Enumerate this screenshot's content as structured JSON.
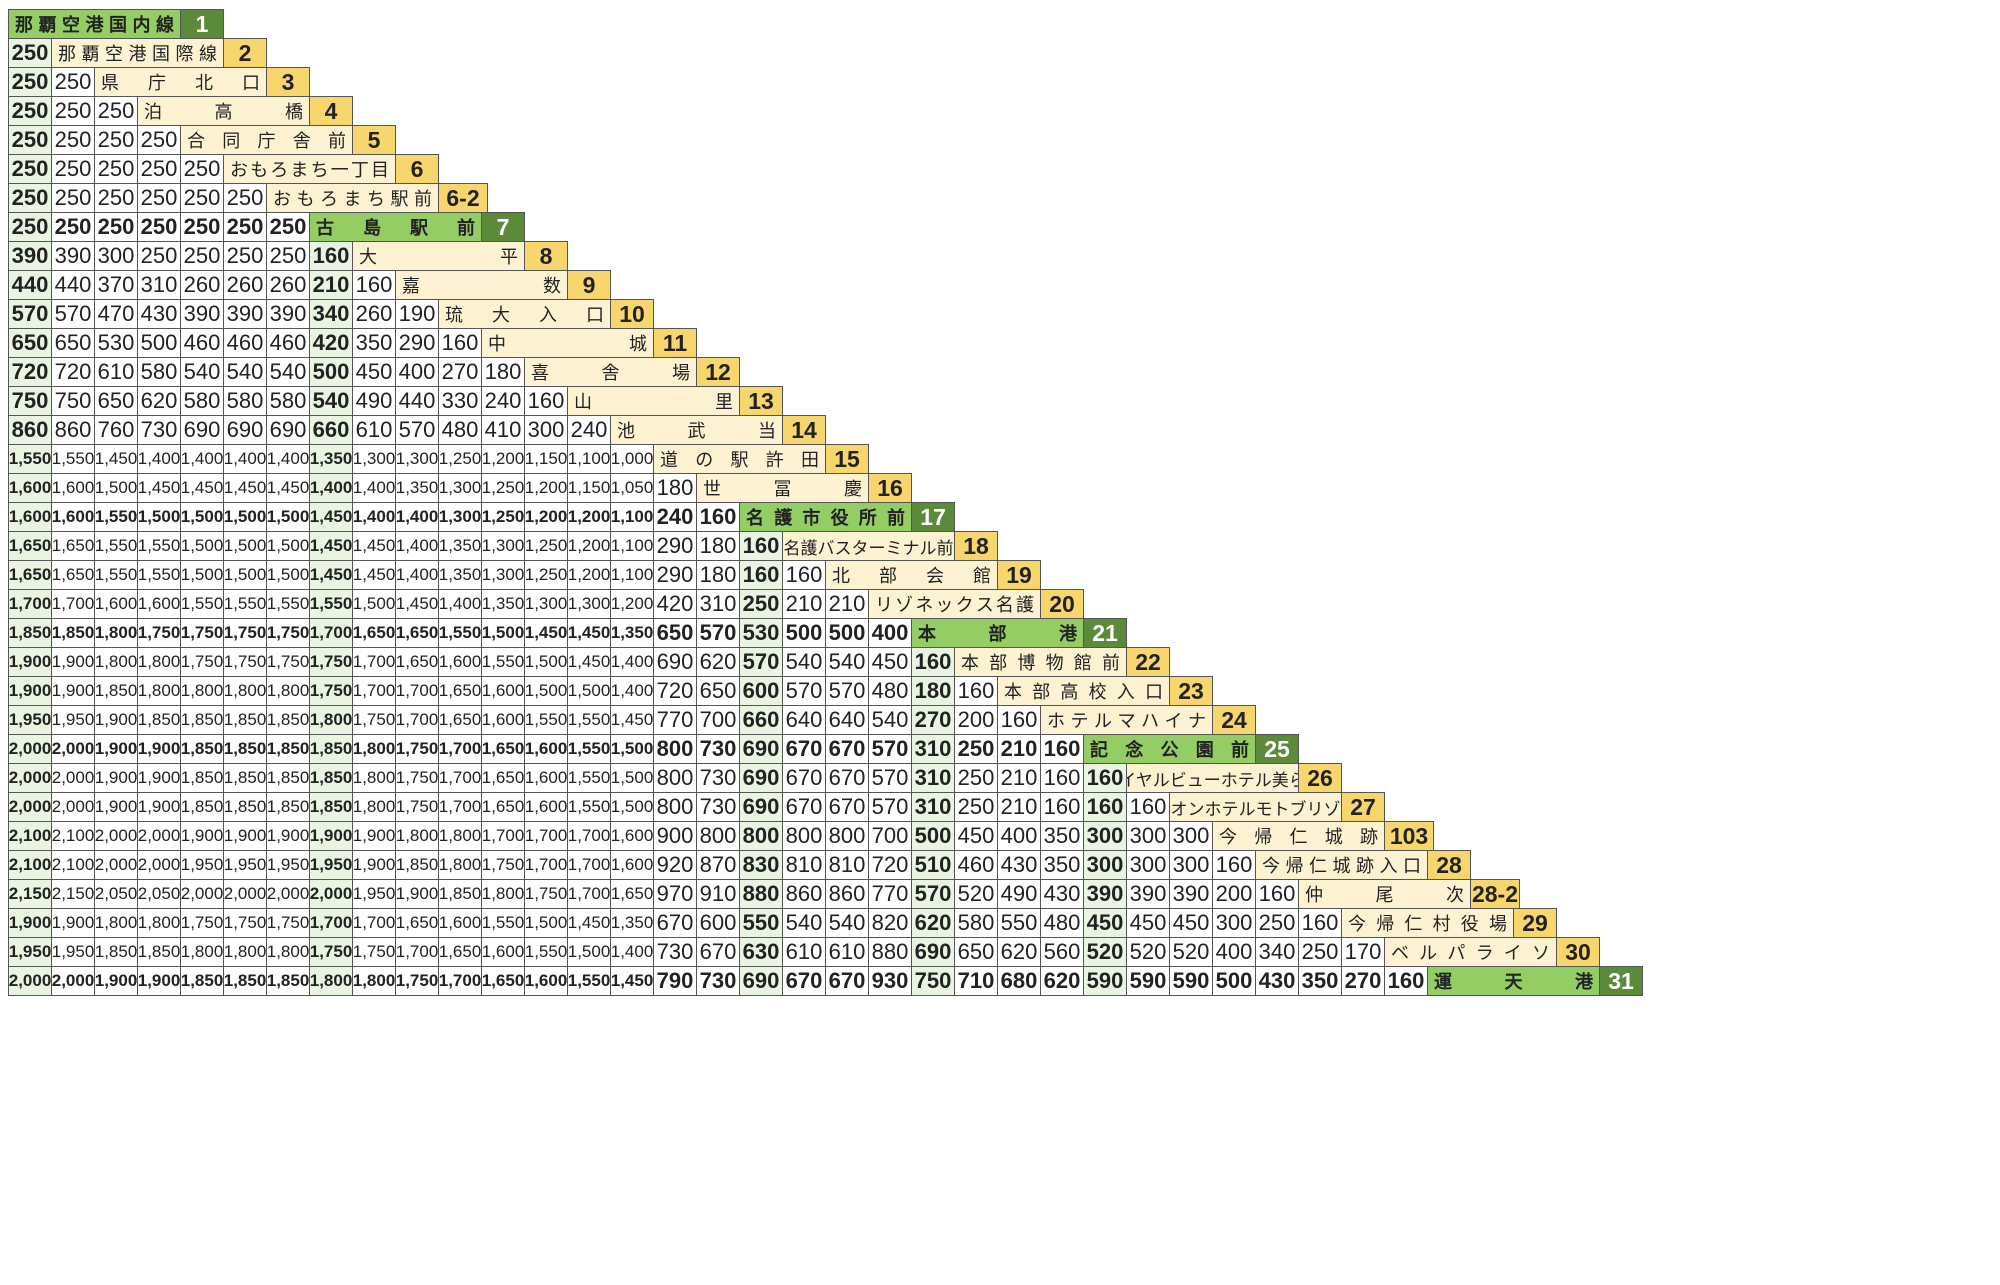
{
  "stops": [
    {
      "no": "1",
      "name": "那覇空港国内線",
      "major": true
    },
    {
      "no": "2",
      "name": "那覇空港国際線",
      "major": false
    },
    {
      "no": "3",
      "name": "県庁北口",
      "major": false
    },
    {
      "no": "4",
      "name": "泊高橋",
      "major": false
    },
    {
      "no": "5",
      "name": "合同庁舎前",
      "major": false
    },
    {
      "no": "6",
      "name": "おもろまち一丁目",
      "major": false
    },
    {
      "no": "6-2",
      "name": "おもろまち駅前",
      "major": false
    },
    {
      "no": "7",
      "name": "古島駅前",
      "major": true
    },
    {
      "no": "8",
      "name": "大平",
      "major": false
    },
    {
      "no": "9",
      "name": "嘉数",
      "major": false
    },
    {
      "no": "10",
      "name": "琉大入口",
      "major": false
    },
    {
      "no": "11",
      "name": "中城",
      "major": false
    },
    {
      "no": "12",
      "name": "喜舎場",
      "major": false
    },
    {
      "no": "13",
      "name": "山里",
      "major": false
    },
    {
      "no": "14",
      "name": "池武当",
      "major": false
    },
    {
      "no": "15",
      "name": "道の駅許田",
      "major": false
    },
    {
      "no": "16",
      "name": "世冨慶",
      "major": false
    },
    {
      "no": "17",
      "name": "名護市役所前",
      "major": true
    },
    {
      "no": "18",
      "name": "名護バスターミナル前",
      "major": false
    },
    {
      "no": "19",
      "name": "北部会館",
      "major": false
    },
    {
      "no": "20",
      "name": "リゾネックス名護",
      "major": false
    },
    {
      "no": "21",
      "name": "本部港",
      "major": true
    },
    {
      "no": "22",
      "name": "本部博物館前",
      "major": false
    },
    {
      "no": "23",
      "name": "本部高校入口",
      "major": false
    },
    {
      "no": "24",
      "name": "ホテルマハイナ",
      "major": false
    },
    {
      "no": "25",
      "name": "記念公園前",
      "major": true
    },
    {
      "no": "26",
      "name": "ロイヤルビューホテル美ら海",
      "major": false
    },
    {
      "no": "27",
      "name": "オリオンホテルモトブリゾート",
      "major": false
    },
    {
      "no": "103",
      "name": "今帰仁城跡",
      "major": false
    },
    {
      "no": "28",
      "name": "今帰仁城跡入口",
      "major": false
    },
    {
      "no": "28-2",
      "name": "仲尾次",
      "major": false
    },
    {
      "no": "29",
      "name": "今帰仁村役場",
      "major": false
    },
    {
      "no": "30",
      "name": "ベルパライソ",
      "major": false
    },
    {
      "no": "31",
      "name": "運天港",
      "major": true
    }
  ],
  "fares": [
    [],
    [
      "250"
    ],
    [
      "250",
      "250"
    ],
    [
      "250",
      "250",
      "250"
    ],
    [
      "250",
      "250",
      "250",
      "250"
    ],
    [
      "250",
      "250",
      "250",
      "250",
      "250"
    ],
    [
      "250",
      "250",
      "250",
      "250",
      "250",
      "250"
    ],
    [
      "250",
      "250",
      "250",
      "250",
      "250",
      "250",
      "250"
    ],
    [
      "390",
      "390",
      "300",
      "250",
      "250",
      "250",
      "250",
      "160"
    ],
    [
      "440",
      "440",
      "370",
      "310",
      "260",
      "260",
      "260",
      "210",
      "160"
    ],
    [
      "570",
      "570",
      "470",
      "430",
      "390",
      "390",
      "390",
      "340",
      "260",
      "190"
    ],
    [
      "650",
      "650",
      "530",
      "500",
      "460",
      "460",
      "460",
      "420",
      "350",
      "290",
      "160"
    ],
    [
      "720",
      "720",
      "610",
      "580",
      "540",
      "540",
      "540",
      "500",
      "450",
      "400",
      "270",
      "180"
    ],
    [
      "750",
      "750",
      "650",
      "620",
      "580",
      "580",
      "580",
      "540",
      "490",
      "440",
      "330",
      "240",
      "160"
    ],
    [
      "860",
      "860",
      "760",
      "730",
      "690",
      "690",
      "690",
      "660",
      "610",
      "570",
      "480",
      "410",
      "300",
      "240"
    ],
    [
      "1,550",
      "1,550",
      "1,450",
      "1,400",
      "1,400",
      "1,400",
      "1,400",
      "1,350",
      "1,300",
      "1,300",
      "1,250",
      "1,200",
      "1,150",
      "1,100",
      "1,000"
    ],
    [
      "1,600",
      "1,600",
      "1,500",
      "1,450",
      "1,450",
      "1,450",
      "1,450",
      "1,400",
      "1,400",
      "1,350",
      "1,300",
      "1,250",
      "1,200",
      "1,150",
      "1,050",
      "180"
    ],
    [
      "1,600",
      "1,600",
      "1,550",
      "1,500",
      "1,500",
      "1,500",
      "1,500",
      "1,450",
      "1,400",
      "1,400",
      "1,300",
      "1,250",
      "1,200",
      "1,200",
      "1,100",
      "240",
      "160"
    ],
    [
      "1,650",
      "1,650",
      "1,550",
      "1,550",
      "1,500",
      "1,500",
      "1,500",
      "1,450",
      "1,450",
      "1,400",
      "1,350",
      "1,300",
      "1,250",
      "1,200",
      "1,100",
      "290",
      "180",
      "160"
    ],
    [
      "1,650",
      "1,650",
      "1,550",
      "1,550",
      "1,500",
      "1,500",
      "1,500",
      "1,450",
      "1,450",
      "1,400",
      "1,350",
      "1,300",
      "1,250",
      "1,200",
      "1,100",
      "290",
      "180",
      "160",
      "160"
    ],
    [
      "1,700",
      "1,700",
      "1,600",
      "1,600",
      "1,550",
      "1,550",
      "1,550",
      "1,550",
      "1,500",
      "1,450",
      "1,400",
      "1,350",
      "1,300",
      "1,300",
      "1,200",
      "420",
      "310",
      "250",
      "210",
      "210"
    ],
    [
      "1,850",
      "1,850",
      "1,800",
      "1,750",
      "1,750",
      "1,750",
      "1,750",
      "1,700",
      "1,650",
      "1,650",
      "1,550",
      "1,500",
      "1,450",
      "1,450",
      "1,350",
      "650",
      "570",
      "530",
      "500",
      "500",
      "400"
    ],
    [
      "1,900",
      "1,900",
      "1,800",
      "1,800",
      "1,750",
      "1,750",
      "1,750",
      "1,750",
      "1,700",
      "1,650",
      "1,600",
      "1,550",
      "1,500",
      "1,450",
      "1,400",
      "690",
      "620",
      "570",
      "540",
      "540",
      "450",
      "160"
    ],
    [
      "1,900",
      "1,900",
      "1,850",
      "1,800",
      "1,800",
      "1,800",
      "1,800",
      "1,750",
      "1,700",
      "1,700",
      "1,650",
      "1,600",
      "1,500",
      "1,500",
      "1,400",
      "720",
      "650",
      "600",
      "570",
      "570",
      "480",
      "180",
      "160"
    ],
    [
      "1,950",
      "1,950",
      "1,900",
      "1,850",
      "1,850",
      "1,850",
      "1,850",
      "1,800",
      "1,750",
      "1,700",
      "1,650",
      "1,600",
      "1,550",
      "1,550",
      "1,450",
      "770",
      "700",
      "660",
      "640",
      "640",
      "540",
      "270",
      "200",
      "160"
    ],
    [
      "2,000",
      "2,000",
      "1,900",
      "1,900",
      "1,850",
      "1,850",
      "1,850",
      "1,850",
      "1,800",
      "1,750",
      "1,700",
      "1,650",
      "1,600",
      "1,550",
      "1,500",
      "800",
      "730",
      "690",
      "670",
      "670",
      "570",
      "310",
      "250",
      "210",
      "160"
    ],
    [
      "2,000",
      "2,000",
      "1,900",
      "1,900",
      "1,850",
      "1,850",
      "1,850",
      "1,850",
      "1,800",
      "1,750",
      "1,700",
      "1,650",
      "1,600",
      "1,550",
      "1,500",
      "800",
      "730",
      "690",
      "670",
      "670",
      "570",
      "310",
      "250",
      "210",
      "160",
      "160"
    ],
    [
      "2,000",
      "2,000",
      "1,900",
      "1,900",
      "1,850",
      "1,850",
      "1,850",
      "1,850",
      "1,800",
      "1,750",
      "1,700",
      "1,650",
      "1,600",
      "1,550",
      "1,500",
      "800",
      "730",
      "690",
      "670",
      "670",
      "570",
      "310",
      "250",
      "210",
      "160",
      "160",
      "160"
    ],
    [
      "2,100",
      "2,100",
      "2,000",
      "2,000",
      "1,900",
      "1,900",
      "1,900",
      "1,900",
      "1,900",
      "1,800",
      "1,800",
      "1,700",
      "1,700",
      "1,700",
      "1,600",
      "900",
      "800",
      "800",
      "800",
      "800",
      "700",
      "500",
      "450",
      "400",
      "350",
      "300",
      "300",
      "300"
    ],
    [
      "2,100",
      "2,100",
      "2,000",
      "2,000",
      "1,950",
      "1,950",
      "1,950",
      "1,950",
      "1,900",
      "1,850",
      "1,800",
      "1,750",
      "1,700",
      "1,700",
      "1,600",
      "920",
      "870",
      "830",
      "810",
      "810",
      "720",
      "510",
      "460",
      "430",
      "350",
      "300",
      "300",
      "300",
      "160"
    ],
    [
      "2,150",
      "2,150",
      "2,050",
      "2,050",
      "2,000",
      "2,000",
      "2,000",
      "2,000",
      "1,950",
      "1,900",
      "1,850",
      "1,800",
      "1,750",
      "1,700",
      "1,650",
      "970",
      "910",
      "880",
      "860",
      "860",
      "770",
      "570",
      "520",
      "490",
      "430",
      "390",
      "390",
      "390",
      "200",
      "160"
    ],
    [
      "1,900",
      "1,900",
      "1,800",
      "1,800",
      "1,750",
      "1,750",
      "1,750",
      "1,700",
      "1,700",
      "1,650",
      "1,600",
      "1,550",
      "1,500",
      "1,450",
      "1,350",
      "670",
      "600",
      "550",
      "540",
      "540",
      "820",
      "620",
      "580",
      "550",
      "480",
      "450",
      "450",
      "450",
      "300",
      "250",
      "160"
    ],
    [
      "1,950",
      "1,950",
      "1,850",
      "1,850",
      "1,800",
      "1,800",
      "1,800",
      "1,750",
      "1,750",
      "1,700",
      "1,650",
      "1,600",
      "1,550",
      "1,500",
      "1,400",
      "730",
      "670",
      "630",
      "610",
      "610",
      "880",
      "690",
      "650",
      "620",
      "560",
      "520",
      "520",
      "520",
      "400",
      "340",
      "250",
      "170"
    ],
    [
      "2,000",
      "2,000",
      "1,900",
      "1,900",
      "1,850",
      "1,850",
      "1,850",
      "1,800",
      "1,800",
      "1,750",
      "1,700",
      "1,650",
      "1,600",
      "1,550",
      "1,450",
      "790",
      "730",
      "690",
      "670",
      "670",
      "930",
      "750",
      "710",
      "680",
      "620",
      "590",
      "590",
      "590",
      "500",
      "430",
      "350",
      "270",
      "160"
    ]
  ]
}
